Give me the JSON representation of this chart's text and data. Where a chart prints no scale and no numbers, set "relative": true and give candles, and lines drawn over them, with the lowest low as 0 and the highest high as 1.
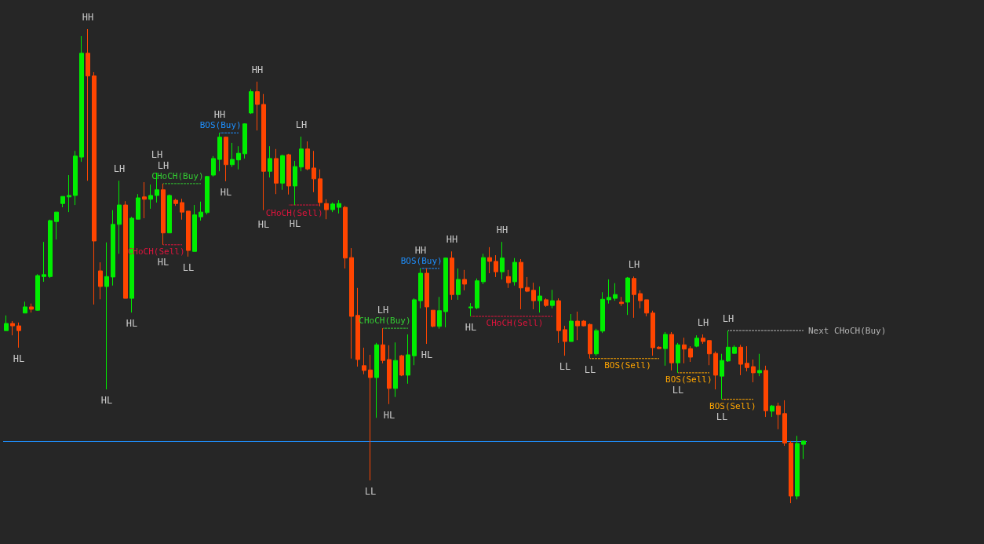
{
  "chart_data": {
    "type": "candlestick",
    "relative": true,
    "line_style": "dashed",
    "categories": [
      null,
      null,
      null,
      null,
      null,
      null,
      null,
      null,
      null,
      null,
      null,
      null,
      null,
      null,
      null,
      null,
      null,
      null,
      null,
      null,
      null,
      null,
      null,
      null,
      null,
      null,
      null,
      null,
      null,
      null,
      null,
      null,
      null,
      null,
      null,
      null,
      null,
      null,
      null,
      null,
      null,
      null,
      null,
      null,
      null,
      null,
      null,
      null,
      null,
      null,
      null,
      null,
      null,
      null,
      null,
      null,
      null,
      null,
      null,
      null,
      null,
      null,
      null,
      null,
      null,
      null,
      null,
      null,
      null,
      null,
      null,
      null,
      null,
      null,
      null,
      null,
      null,
      null,
      null,
      null,
      null,
      null,
      null,
      null,
      null,
      null,
      null,
      null,
      null,
      null,
      null,
      null,
      null,
      null,
      null,
      null,
      null,
      null,
      null,
      null,
      null,
      null,
      null,
      null,
      null,
      null,
      null,
      null,
      null,
      null,
      null,
      null,
      null,
      null,
      null,
      null,
      null,
      null,
      null,
      null,
      null,
      null,
      null,
      null,
      null,
      null,
      null,
      null
    ],
    "ohlc": [
      [
        0.364,
        0.396,
        0.364,
        0.379
      ],
      [
        0.379,
        0.384,
        0.354,
        0.374
      ],
      [
        0.374,
        0.381,
        0.328,
        0.364
      ],
      [
        0.401,
        0.425,
        0.401,
        0.414
      ],
      [
        0.414,
        0.421,
        0.402,
        0.409
      ],
      [
        0.407,
        0.483,
        0.406,
        0.48
      ],
      [
        0.478,
        0.551,
        0.467,
        0.482
      ],
      [
        0.478,
        0.598,
        0.475,
        0.596
      ],
      [
        0.594,
        0.614,
        0.556,
        0.614
      ],
      [
        0.632,
        0.647,
        0.624,
        0.647
      ],
      [
        0.646,
        0.692,
        0.614,
        0.649
      ],
      [
        0.649,
        0.743,
        0.629,
        0.732
      ],
      [
        0.73,
        0.985,
        0.72,
        0.949
      ],
      [
        0.949,
        1,
        0.68,
        0.901
      ],
      [
        0.901,
        0.909,
        0.419,
        0.553
      ],
      [
        0.49,
        0.508,
        0.43,
        0.457
      ],
      [
        0.457,
        0.55,
        0.24,
        0.478
      ],
      [
        0.477,
        0.618,
        0.459,
        0.588
      ],
      [
        0.588,
        0.68,
        0.526,
        0.629
      ],
      [
        0.629,
        0.637,
        0.432,
        0.432
      ],
      [
        0.432,
        0.604,
        0.402,
        0.601
      ],
      [
        0.599,
        0.652,
        0.599,
        0.644
      ],
      [
        0.646,
        0.677,
        0.601,
        0.641
      ],
      [
        0.641,
        0.672,
        0.621,
        0.649
      ],
      [
        0.649,
        0.697,
        0.634,
        0.661
      ],
      [
        0.661,
        0.674,
        0.545,
        0.57
      ],
      [
        0.57,
        0.651,
        0.57,
        0.649
      ],
      [
        0.639,
        0.642,
        0.627,
        0.632
      ],
      [
        0.634,
        0.642,
        0.598,
        0.614
      ],
      [
        0.616,
        0.616,
        0.52,
        0.533
      ],
      [
        0.531,
        0.629,
        0.531,
        0.608
      ],
      [
        0.604,
        0.636,
        0.596,
        0.614
      ],
      [
        0.613,
        0.69,
        0.609,
        0.689
      ],
      [
        0.692,
        0.732,
        0.689,
        0.727
      ],
      [
        0.725,
        0.781,
        0.7,
        0.772
      ],
      [
        0.772,
        0.773,
        0.679,
        0.714
      ],
      [
        0.714,
        0.76,
        0.709,
        0.725
      ],
      [
        0.724,
        0.753,
        0.704,
        0.738
      ],
      [
        0.737,
        0.801,
        0.727,
        0.8
      ],
      [
        0.823,
        0.873,
        0.821,
        0.868
      ],
      [
        0.868,
        0.889,
        0.786,
        0.841
      ],
      [
        0.841,
        0.863,
        0.618,
        0.7
      ],
      [
        0.7,
        0.753,
        0.687,
        0.727
      ],
      [
        0.727,
        0.747,
        0.652,
        0.675
      ],
      [
        0.675,
        0.735,
        0.661,
        0.733
      ],
      [
        0.735,
        0.737,
        0.651,
        0.669
      ],
      [
        0.669,
        0.722,
        0.629,
        0.71
      ],
      [
        0.709,
        0.773,
        0.7,
        0.747
      ],
      [
        0.747,
        0.763,
        0.702,
        0.705
      ],
      [
        0.707,
        0.743,
        0.656,
        0.684
      ],
      [
        0.684,
        0.704,
        0.626,
        0.634
      ],
      [
        0.632,
        0.641,
        0.599,
        0.619
      ],
      [
        0.619,
        0.634,
        0.614,
        0.631
      ],
      [
        0.624,
        0.639,
        0.611,
        0.632
      ],
      [
        0.624,
        0.627,
        0.495,
        0.517
      ],
      [
        0.518,
        0.538,
        0.305,
        0.394
      ],
      [
        0.396,
        0.454,
        0.288,
        0.303
      ],
      [
        0.29,
        0.328,
        0.272,
        0.28
      ],
      [
        0.281,
        0.313,
        0.048,
        0.265
      ],
      [
        0.265,
        0.338,
        0.18,
        0.334
      ],
      [
        0.334,
        0.369,
        0.295,
        0.301
      ],
      [
        0.303,
        0.333,
        0.209,
        0.242
      ],
      [
        0.242,
        0.339,
        0.224,
        0.301
      ],
      [
        0.311,
        0.313,
        0.268,
        0.27
      ],
      [
        0.27,
        0.356,
        0.252,
        0.313
      ],
      [
        0.311,
        0.432,
        0.291,
        0.429
      ],
      [
        0.427,
        0.495,
        0.411,
        0.485
      ],
      [
        0.485,
        0.495,
        0.336,
        0.414
      ],
      [
        0.407,
        0.407,
        0.371,
        0.373
      ],
      [
        0.373,
        0.435,
        0.368,
        0.406
      ],
      [
        0.404,
        0.518,
        0.371,
        0.517
      ],
      [
        0.517,
        0.531,
        0.429,
        0.44
      ],
      [
        0.44,
        0.495,
        0.429,
        0.472
      ],
      [
        0.472,
        0.492,
        0.449,
        0.462
      ],
      [
        0.412,
        0.422,
        0.394,
        0.414
      ],
      [
        0.412,
        0.474,
        0.409,
        0.469
      ],
      [
        0.467,
        0.526,
        0.462,
        0.518
      ],
      [
        0.518,
        0.54,
        0.485,
        0.51
      ],
      [
        0.51,
        0.523,
        0.477,
        0.488
      ],
      [
        0.488,
        0.551,
        0.472,
        0.517
      ],
      [
        0.478,
        0.492,
        0.454,
        0.465
      ],
      [
        0.467,
        0.517,
        0.459,
        0.508
      ],
      [
        0.508,
        0.515,
        0.409,
        0.454
      ],
      [
        0.455,
        0.477,
        0.445,
        0.447
      ],
      [
        0.449,
        0.465,
        0.409,
        0.427
      ],
      [
        0.427,
        0.457,
        0.402,
        0.437
      ],
      [
        0.429,
        0.432,
        0.414,
        0.417
      ],
      [
        0.417,
        0.45,
        0.411,
        0.427
      ],
      [
        0.427,
        0.432,
        0.338,
        0.364
      ],
      [
        0.366,
        0.374,
        0.311,
        0.341
      ],
      [
        0.341,
        0.399,
        0.341,
        0.384
      ],
      [
        0.384,
        0.404,
        0.344,
        0.374
      ],
      [
        0.384,
        0.386,
        0.373,
        0.374
      ],
      [
        0.377,
        0.379,
        0.305,
        0.315
      ],
      [
        0.315,
        0.368,
        0.311,
        0.364
      ],
      [
        0.363,
        0.445,
        0.359,
        0.43
      ],
      [
        0.429,
        0.472,
        0.421,
        0.434
      ],
      [
        0.432,
        0.464,
        0.427,
        0.44
      ],
      [
        0.424,
        0.435,
        0.416,
        0.421
      ],
      [
        0.424,
        0.477,
        0.397,
        0.475
      ],
      [
        0.474,
        0.478,
        0.391,
        0.44
      ],
      [
        0.442,
        0.449,
        0.411,
        0.427
      ],
      [
        0.429,
        0.429,
        0.394,
        0.401
      ],
      [
        0.401,
        0.406,
        0.311,
        0.328
      ],
      [
        0.329,
        0.331,
        0.325,
        0.326
      ],
      [
        0.326,
        0.361,
        0.29,
        0.356
      ],
      [
        0.356,
        0.361,
        0.28,
        0.296
      ],
      [
        0.296,
        0.338,
        0.275,
        0.334
      ],
      [
        0.334,
        0.349,
        0.295,
        0.325
      ],
      [
        0.326,
        0.331,
        0.298,
        0.308
      ],
      [
        0.331,
        0.354,
        0.329,
        0.348
      ],
      [
        0.348,
        0.356,
        0.336,
        0.341
      ],
      [
        0.343,
        0.344,
        0.291,
        0.315
      ],
      [
        0.316,
        0.32,
        0.24,
        0.27
      ],
      [
        0.268,
        0.315,
        0.219,
        0.301
      ],
      [
        0.3,
        0.364,
        0.298,
        0.329
      ],
      [
        0.316,
        0.333,
        0.315,
        0.329
      ],
      [
        0.329,
        0.334,
        0.27,
        0.293
      ],
      [
        0.295,
        0.331,
        0.278,
        0.286
      ],
      [
        0.288,
        0.303,
        0.255,
        0.275
      ],
      [
        0.275,
        0.315,
        0.268,
        0.28
      ],
      [
        0.28,
        0.29,
        0.182,
        0.195
      ],
      [
        0.194,
        0.207,
        0.182,
        0.205
      ],
      [
        0.205,
        0.212,
        0.156,
        0.187
      ],
      [
        0.189,
        0.217,
        0.121,
        0.127
      ],
      [
        0.127,
        0.131,
        0,
        0.015
      ],
      [
        0.015,
        0.142,
        0.008,
        0.126
      ],
      [
        0.124,
        0.132,
        0.093,
        0.131
      ]
    ],
    "series": [
      {
        "type": "line",
        "name": "CHoCH(Buy)",
        "color": "#33cc33",
        "values": [
          null,
          null,
          null,
          null,
          null,
          null,
          null,
          null,
          null,
          null,
          null,
          null,
          null,
          null,
          null,
          null,
          null,
          null,
          null,
          null,
          null,
          null,
          null,
          null,
          null,
          0.674,
          0.674,
          0.674,
          0.674,
          0.674,
          0.674,
          0.674,
          null,
          null,
          null,
          null,
          null,
          null,
          null,
          null,
          null,
          null,
          null,
          null,
          null,
          null,
          null,
          null,
          null,
          null,
          null,
          null,
          null,
          null,
          null,
          null,
          null,
          null,
          null,
          null,
          null,
          null,
          null,
          null,
          null,
          null,
          null,
          null,
          null,
          null,
          null,
          null,
          null,
          null,
          null,
          null,
          null,
          null,
          null,
          null,
          null,
          null,
          null,
          null,
          null,
          null,
          null,
          null,
          null,
          null,
          null,
          null,
          null,
          null,
          null,
          null,
          null,
          null,
          null,
          null,
          null,
          null,
          null,
          null,
          null,
          null,
          null,
          null,
          null,
          null,
          null,
          null,
          null,
          null,
          null,
          null,
          null,
          null,
          null,
          null,
          null,
          null,
          null,
          null,
          null,
          null,
          null,
          null
        ]
      },
      {
        "type": "line",
        "name": "CHoCH(Sell)",
        "color": "#dc143c",
        "values": [
          null,
          null,
          null,
          null,
          null,
          null,
          null,
          null,
          null,
          null,
          null,
          null,
          null,
          null,
          null,
          null,
          null,
          null,
          null,
          null,
          null,
          null,
          null,
          null,
          null,
          0.545,
          0.545,
          0.545,
          0.545,
          null,
          null,
          null,
          null,
          null,
          null,
          null,
          null,
          null,
          null,
          null,
          null,
          null,
          null,
          null,
          null,
          null,
          null,
          null,
          null,
          null,
          null,
          null,
          null,
          null,
          null,
          null,
          null,
          null,
          null,
          null,
          null,
          null,
          null,
          null,
          null,
          null,
          null,
          null,
          null,
          null,
          null,
          null,
          null,
          null,
          null,
          null,
          null,
          null,
          null,
          null,
          null,
          null,
          null,
          null,
          null,
          null,
          null,
          null,
          null,
          null,
          null,
          null,
          null,
          null,
          null,
          null,
          null,
          null,
          null,
          null,
          null,
          null,
          null,
          null,
          null,
          null,
          null,
          null,
          null,
          null,
          null,
          null,
          null,
          null,
          null,
          null,
          null,
          null,
          null,
          null,
          null,
          null,
          null,
          null,
          null,
          null,
          null,
          null
        ]
      },
      {
        "type": "line",
        "name": "BOS(Buy)",
        "color": "#1e90ff",
        "values": [
          null,
          null,
          null,
          null,
          null,
          null,
          null,
          null,
          null,
          null,
          null,
          null,
          null,
          null,
          null,
          null,
          null,
          null,
          null,
          null,
          null,
          null,
          null,
          null,
          null,
          null,
          null,
          null,
          null,
          null,
          null,
          null,
          null,
          null,
          0.781,
          0.781,
          0.781,
          0.781,
          null,
          null,
          null,
          null,
          null,
          null,
          null,
          null,
          null,
          null,
          null,
          null,
          null,
          null,
          null,
          null,
          null,
          null,
          null,
          null,
          null,
          null,
          null,
          null,
          null,
          null,
          null,
          null,
          null,
          null,
          null,
          null,
          null,
          null,
          null,
          null,
          null,
          null,
          null,
          null,
          null,
          null,
          null,
          null,
          null,
          null,
          null,
          null,
          null,
          null,
          null,
          null,
          null,
          null,
          null,
          null,
          null,
          null,
          null,
          null,
          null,
          null,
          null,
          null,
          null,
          null,
          null,
          null,
          null,
          null,
          null,
          null,
          null,
          null,
          null,
          null,
          null,
          null,
          null,
          null,
          null,
          null,
          null,
          null,
          null,
          null,
          null,
          null,
          null,
          null
        ]
      },
      {
        "type": "line",
        "name": "CHoCH(Sell)",
        "color": "#dc143c",
        "values": [
          null,
          null,
          null,
          null,
          null,
          null,
          null,
          null,
          null,
          null,
          null,
          null,
          null,
          null,
          null,
          null,
          null,
          null,
          null,
          null,
          null,
          null,
          null,
          null,
          null,
          null,
          null,
          null,
          null,
          null,
          null,
          null,
          null,
          null,
          null,
          null,
          null,
          null,
          null,
          null,
          null,
          null,
          null,
          null,
          null,
          0.629,
          0.629,
          0.629,
          0.629,
          0.629,
          0.629,
          null,
          null,
          null,
          null,
          null,
          null,
          null,
          null,
          null,
          null,
          null,
          null,
          null,
          null,
          null,
          null,
          null,
          null,
          null,
          null,
          null,
          null,
          null,
          null,
          null,
          null,
          null,
          null,
          null,
          null,
          null,
          null,
          null,
          null,
          null,
          null,
          null,
          null,
          null,
          null,
          null,
          null,
          null,
          null,
          null,
          null,
          null,
          null,
          null,
          null,
          null,
          null,
          null,
          null,
          null,
          null,
          null,
          null,
          null,
          null,
          null,
          null,
          null,
          null,
          null,
          null,
          null,
          null,
          null,
          null,
          null,
          null,
          null,
          null,
          null,
          null,
          null
        ]
      },
      {
        "type": "line",
        "name": "CHoCH(Buy)",
        "color": "#33cc33",
        "values": [
          null,
          null,
          null,
          null,
          null,
          null,
          null,
          null,
          null,
          null,
          null,
          null,
          null,
          null,
          null,
          null,
          null,
          null,
          null,
          null,
          null,
          null,
          null,
          null,
          null,
          null,
          null,
          null,
          null,
          null,
          null,
          null,
          null,
          null,
          null,
          null,
          null,
          null,
          null,
          null,
          null,
          null,
          null,
          null,
          null,
          null,
          null,
          null,
          null,
          null,
          null,
          null,
          null,
          null,
          null,
          null,
          null,
          null,
          null,
          null,
          0.369,
          0.369,
          0.369,
          0.369,
          0.369,
          null,
          null,
          null,
          null,
          null,
          null,
          null,
          null,
          null,
          null,
          null,
          null,
          null,
          null,
          null,
          null,
          null,
          null,
          null,
          null,
          null,
          null,
          null,
          null,
          null,
          null,
          null,
          null,
          null,
          null,
          null,
          null,
          null,
          null,
          null,
          null,
          null,
          null,
          null,
          null,
          null,
          null,
          null,
          null,
          null,
          null,
          null,
          null,
          null,
          null,
          null,
          null,
          null,
          null,
          null,
          null,
          null,
          null,
          null,
          null,
          null,
          null,
          null
        ]
      },
      {
        "type": "line",
        "name": "BOS(Buy)",
        "color": "#1e90ff",
        "values": [
          null,
          null,
          null,
          null,
          null,
          null,
          null,
          null,
          null,
          null,
          null,
          null,
          null,
          null,
          null,
          null,
          null,
          null,
          null,
          null,
          null,
          null,
          null,
          null,
          null,
          null,
          null,
          null,
          null,
          null,
          null,
          null,
          null,
          null,
          null,
          null,
          null,
          null,
          null,
          null,
          null,
          null,
          null,
          null,
          null,
          null,
          null,
          null,
          null,
          null,
          null,
          null,
          null,
          null,
          null,
          null,
          null,
          null,
          null,
          null,
          null,
          null,
          null,
          null,
          null,
          null,
          0.495,
          0.495,
          0.495,
          0.495,
          null,
          null,
          null,
          null,
          null,
          null,
          null,
          null,
          null,
          null,
          null,
          null,
          null,
          null,
          null,
          null,
          null,
          null,
          null,
          null,
          null,
          null,
          null,
          null,
          null,
          null,
          null,
          null,
          null,
          null,
          null,
          null,
          null,
          null,
          null,
          null,
          null,
          null,
          null,
          null,
          null,
          null,
          null,
          null,
          null,
          null,
          null,
          null,
          null,
          null,
          null,
          null,
          null,
          null,
          null,
          null,
          null,
          null
        ]
      },
      {
        "type": "line",
        "name": "CHoCH(Sell)",
        "color": "#dc143c",
        "values": [
          null,
          null,
          null,
          null,
          null,
          null,
          null,
          null,
          null,
          null,
          null,
          null,
          null,
          null,
          null,
          null,
          null,
          null,
          null,
          null,
          null,
          null,
          null,
          null,
          null,
          null,
          null,
          null,
          null,
          null,
          null,
          null,
          null,
          null,
          null,
          null,
          null,
          null,
          null,
          null,
          null,
          null,
          null,
          null,
          null,
          null,
          null,
          null,
          null,
          null,
          null,
          null,
          null,
          null,
          null,
          null,
          null,
          null,
          null,
          null,
          null,
          null,
          null,
          null,
          null,
          null,
          null,
          null,
          null,
          null,
          null,
          null,
          null,
          null,
          0.394,
          0.394,
          0.394,
          0.394,
          0.394,
          0.394,
          0.394,
          0.394,
          0.394,
          0.394,
          0.394,
          0.394,
          0.394,
          0.394,
          null,
          null,
          null,
          null,
          null,
          null,
          null,
          null,
          null,
          null,
          null,
          null,
          null,
          null,
          null,
          null,
          null,
          null,
          null,
          null,
          null,
          null,
          null,
          null,
          null,
          null,
          null,
          null,
          null,
          null,
          null,
          null,
          null,
          null,
          null,
          null,
          null,
          null,
          null,
          null
        ]
      },
      {
        "type": "line",
        "name": "BOS(Sell)",
        "color": "#ffa500",
        "values": [
          null,
          null,
          null,
          null,
          null,
          null,
          null,
          null,
          null,
          null,
          null,
          null,
          null,
          null,
          null,
          null,
          null,
          null,
          null,
          null,
          null,
          null,
          null,
          null,
          null,
          null,
          null,
          null,
          null,
          null,
          null,
          null,
          null,
          null,
          null,
          null,
          null,
          null,
          null,
          null,
          null,
          null,
          null,
          null,
          null,
          null,
          null,
          null,
          null,
          null,
          null,
          null,
          null,
          null,
          null,
          null,
          null,
          null,
          null,
          null,
          null,
          null,
          null,
          null,
          null,
          null,
          null,
          null,
          null,
          null,
          null,
          null,
          null,
          null,
          null,
          null,
          null,
          null,
          null,
          null,
          null,
          null,
          null,
          null,
          null,
          null,
          null,
          null,
          null,
          null,
          null,
          null,
          null,
          0.305,
          0.305,
          0.305,
          0.305,
          0.305,
          0.305,
          0.305,
          0.305,
          0.305,
          0.305,
          0.305,
          0.305,
          null,
          null,
          null,
          null,
          null,
          null,
          null,
          null,
          null,
          null,
          null,
          null,
          null,
          null,
          null,
          null,
          null,
          null,
          null,
          null,
          null,
          null,
          null
        ]
      },
      {
        "type": "line",
        "name": "BOS(Sell)",
        "color": "#ffa500",
        "values": [
          null,
          null,
          null,
          null,
          null,
          null,
          null,
          null,
          null,
          null,
          null,
          null,
          null,
          null,
          null,
          null,
          null,
          null,
          null,
          null,
          null,
          null,
          null,
          null,
          null,
          null,
          null,
          null,
          null,
          null,
          null,
          null,
          null,
          null,
          null,
          null,
          null,
          null,
          null,
          null,
          null,
          null,
          null,
          null,
          null,
          null,
          null,
          null,
          null,
          null,
          null,
          null,
          null,
          null,
          null,
          null,
          null,
          null,
          null,
          null,
          null,
          null,
          null,
          null,
          null,
          null,
          null,
          null,
          null,
          null,
          null,
          null,
          null,
          null,
          null,
          null,
          null,
          null,
          null,
          null,
          null,
          null,
          null,
          null,
          null,
          null,
          null,
          null,
          null,
          null,
          null,
          null,
          null,
          null,
          null,
          null,
          null,
          null,
          null,
          null,
          null,
          null,
          null,
          null,
          null,
          null,
          null,
          0.275,
          0.275,
          0.275,
          0.275,
          0.275,
          0.275,
          null,
          null,
          null,
          null,
          null,
          null,
          null,
          null,
          null,
          null,
          null,
          null,
          null,
          null,
          null
        ]
      },
      {
        "type": "line",
        "name": "BOS(Sell)",
        "color": "#ffa500",
        "values": [
          null,
          null,
          null,
          null,
          null,
          null,
          null,
          null,
          null,
          null,
          null,
          null,
          null,
          null,
          null,
          null,
          null,
          null,
          null,
          null,
          null,
          null,
          null,
          null,
          null,
          null,
          null,
          null,
          null,
          null,
          null,
          null,
          null,
          null,
          null,
          null,
          null,
          null,
          null,
          null,
          null,
          null,
          null,
          null,
          null,
          null,
          null,
          null,
          null,
          null,
          null,
          null,
          null,
          null,
          null,
          null,
          null,
          null,
          null,
          null,
          null,
          null,
          null,
          null,
          null,
          null,
          null,
          null,
          null,
          null,
          null,
          null,
          null,
          null,
          null,
          null,
          null,
          null,
          null,
          null,
          null,
          null,
          null,
          null,
          null,
          null,
          null,
          null,
          null,
          null,
          null,
          null,
          null,
          null,
          null,
          null,
          null,
          null,
          null,
          null,
          null,
          null,
          null,
          null,
          null,
          null,
          null,
          null,
          null,
          null,
          null,
          null,
          null,
          null,
          0.219,
          0.219,
          0.219,
          0.219,
          0.219,
          0.219,
          null,
          null,
          null,
          null,
          null,
          null,
          null,
          null
        ]
      },
      {
        "type": "line",
        "name": "Next CHoCH(Buy)",
        "color": "#b4b4b4",
        "values": [
          null,
          null,
          null,
          null,
          null,
          null,
          null,
          null,
          null,
          null,
          null,
          null,
          null,
          null,
          null,
          null,
          null,
          null,
          null,
          null,
          null,
          null,
          null,
          null,
          null,
          null,
          null,
          null,
          null,
          null,
          null,
          null,
          null,
          null,
          null,
          null,
          null,
          null,
          null,
          null,
          null,
          null,
          null,
          null,
          null,
          null,
          null,
          null,
          null,
          null,
          null,
          null,
          null,
          null,
          null,
          null,
          null,
          null,
          null,
          null,
          null,
          null,
          null,
          null,
          null,
          null,
          null,
          null,
          null,
          null,
          null,
          null,
          null,
          null,
          null,
          null,
          null,
          null,
          null,
          null,
          null,
          null,
          null,
          null,
          null,
          null,
          null,
          null,
          null,
          null,
          null,
          null,
          null,
          null,
          null,
          null,
          null,
          null,
          null,
          null,
          null,
          null,
          null,
          null,
          null,
          null,
          null,
          null,
          null,
          null,
          null,
          null,
          null,
          null,
          null,
          0.364,
          0.364,
          0.364,
          0.364,
          0.364,
          0.364,
          0.364,
          0.364,
          0.364,
          0.364,
          0.364,
          0.364,
          0.364
        ]
      }
    ],
    "ref_lines": [
      {
        "axis": "y",
        "value": 0.129,
        "color": "#1e90ff"
      }
    ],
    "annotations": [
      {
        "text": "HL",
        "y": 0.328
      },
      {
        "text": "HH",
        "y": 1
      },
      {
        "text": "HL",
        "y": 0.24
      },
      {
        "text": "LH",
        "y": 0.68
      },
      {
        "text": "HL",
        "y": 0.402
      },
      {
        "text": "LH",
        "y": 0.697
      },
      {
        "text": "LH",
        "y": 0.674
      },
      {
        "text": "HL",
        "y": 0.545
      },
      {
        "text": "LL",
        "y": 0.52
      },
      {
        "text": "HH",
        "y": 0.781
      },
      {
        "text": "HL",
        "y": 0.679
      },
      {
        "text": "HH",
        "y": 0.889
      },
      {
        "text": "HL",
        "y": 0.618
      },
      {
        "text": "HL",
        "y": 0.629
      },
      {
        "text": "LH",
        "y": 0.773
      },
      {
        "text": "LL",
        "y": 0.048
      },
      {
        "text": "LH",
        "y": 0.369
      },
      {
        "text": "HL",
        "y": 0.209
      },
      {
        "text": "HH",
        "y": 0.495
      },
      {
        "text": "HL",
        "y": 0.336
      },
      {
        "text": "HH",
        "y": 0.531
      },
      {
        "text": "HL",
        "y": 0.394
      },
      {
        "text": "HH",
        "y": 0.551
      },
      {
        "text": "LL",
        "y": 0.311
      },
      {
        "text": "LL",
        "y": 0.305
      },
      {
        "text": "LH",
        "y": 0.478
      },
      {
        "text": "LL",
        "y": 0.275
      },
      {
        "text": "LH",
        "y": 0.356
      },
      {
        "text": "LL",
        "y": 0.219
      },
      {
        "text": "LH",
        "y": 0.364
      }
    ]
  }
}
